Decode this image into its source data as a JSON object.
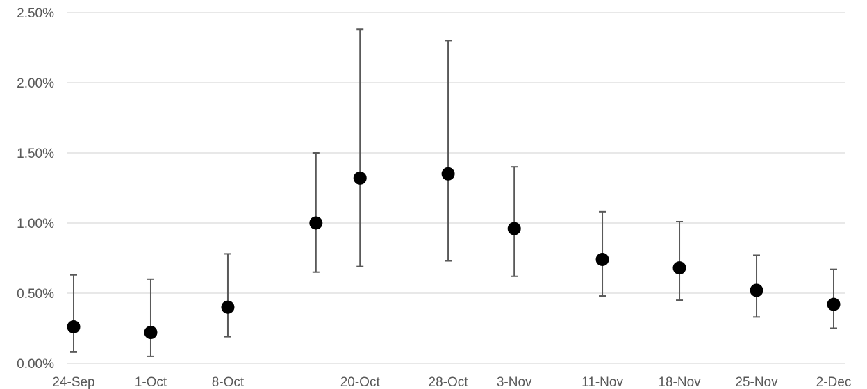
{
  "chart_data": {
    "type": "scatter",
    "title": "",
    "xlabel": "",
    "ylabel": "",
    "ylim": [
      0,
      0.025
    ],
    "grid": true,
    "legend": "none",
    "y_tick_labels": [
      "0.00%",
      "0.50%",
      "1.00%",
      "1.50%",
      "2.00%",
      "2.50%"
    ],
    "y_ticks": [
      0,
      0.005,
      0.01,
      0.015,
      0.02,
      0.025
    ],
    "x_tick_labels": [
      "24-Sep",
      "1-Oct",
      "8-Oct",
      "20-Oct",
      "28-Oct",
      "3-Nov",
      "11-Nov",
      "18-Nov",
      "25-Nov",
      "2-Dec"
    ],
    "x_tick_dates": [
      "2020-09-24",
      "2020-10-01",
      "2020-10-08",
      "2020-10-20",
      "2020-10-28",
      "2020-11-03",
      "2020-11-11",
      "2020-11-18",
      "2020-11-25",
      "2020-12-02"
    ],
    "xlim": [
      "2020-09-24",
      "2020-12-02"
    ],
    "points": [
      {
        "x": "2020-09-24",
        "y": 0.0026,
        "low": 0.0008,
        "high": 0.0063
      },
      {
        "x": "2020-10-01",
        "y": 0.0022,
        "low": 0.0005,
        "high": 0.006
      },
      {
        "x": "2020-10-08",
        "y": 0.004,
        "low": 0.0019,
        "high": 0.0078
      },
      {
        "x": "2020-10-16",
        "y": 0.01,
        "low": 0.0065,
        "high": 0.015
      },
      {
        "x": "2020-10-20",
        "y": 0.0132,
        "low": 0.0069,
        "high": 0.0238
      },
      {
        "x": "2020-10-28",
        "y": 0.0135,
        "low": 0.0073,
        "high": 0.023
      },
      {
        "x": "2020-11-03",
        "y": 0.0096,
        "low": 0.0062,
        "high": 0.014
      },
      {
        "x": "2020-11-11",
        "y": 0.0074,
        "low": 0.0048,
        "high": 0.0108
      },
      {
        "x": "2020-11-18",
        "y": 0.0068,
        "low": 0.0045,
        "high": 0.0101
      },
      {
        "x": "2020-11-25",
        "y": 0.0052,
        "low": 0.0033,
        "high": 0.0077
      },
      {
        "x": "2020-12-02",
        "y": 0.0042,
        "low": 0.0025,
        "high": 0.0067
      }
    ],
    "colors": {
      "point": "#000000",
      "error_bar": "#595959",
      "grid": "#d9d9d9",
      "text": "#595959"
    }
  }
}
